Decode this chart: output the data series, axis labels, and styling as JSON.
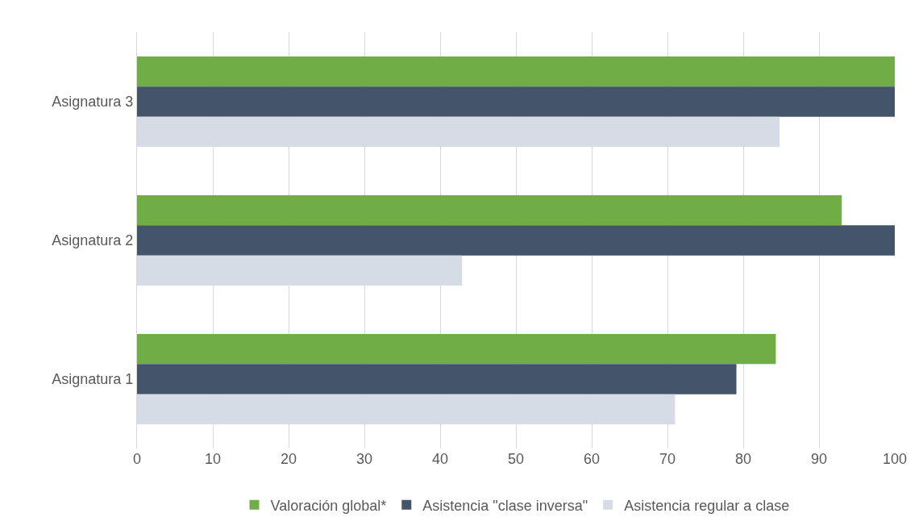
{
  "chart_data": {
    "type": "bar",
    "orientation": "horizontal",
    "categories": [
      "Asignatura 3",
      "Asignatura 2",
      "Asignatura 1"
    ],
    "series": [
      {
        "name": "Valoración global*",
        "color": "#70ad47",
        "values": [
          100,
          93,
          84.3
        ]
      },
      {
        "name": "Asistencia \"clase inversa\"",
        "color": "#44546a",
        "values": [
          100,
          100,
          79.1
        ]
      },
      {
        "name": "Asistencia regular a clase",
        "color": "#d6dce5",
        "values": [
          84.8,
          42.9,
          71
        ]
      }
    ],
    "xlim": [
      0,
      100
    ],
    "xticks": [
      0,
      10,
      20,
      30,
      40,
      50,
      60,
      70,
      80,
      90,
      100
    ],
    "grid": "x",
    "legend": "bottom"
  }
}
